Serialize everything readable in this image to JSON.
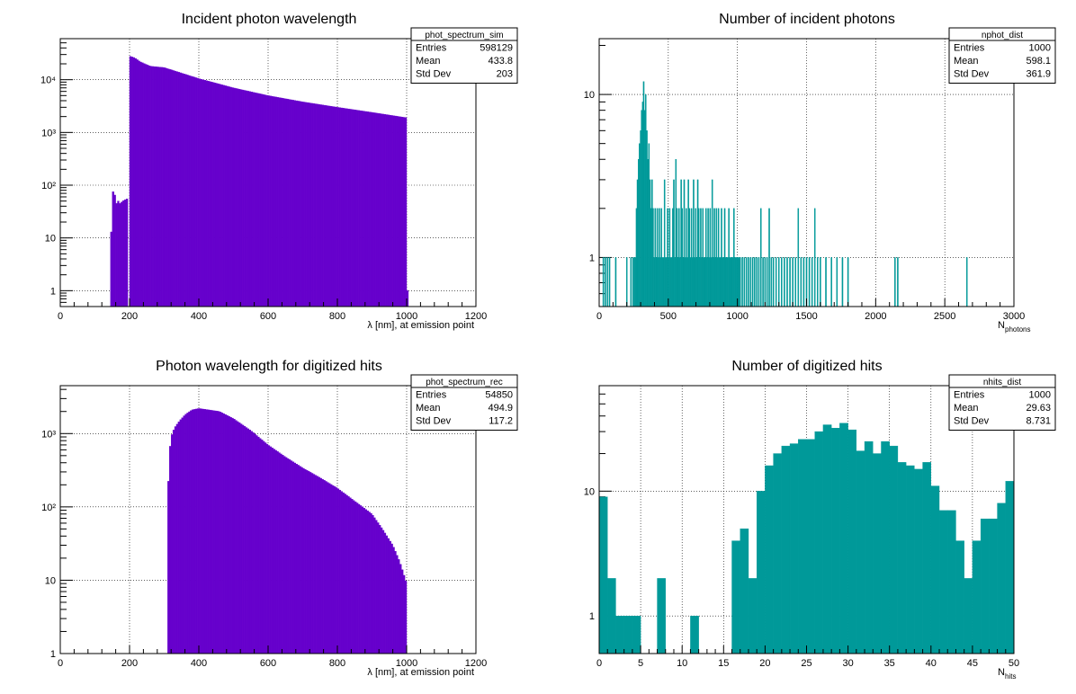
{
  "colors": {
    "purple_fill": "#6600CC",
    "teal_fill": "#009999",
    "frame": "#000000",
    "grid": "#000000",
    "background": "#ffffff"
  },
  "chart_data": [
    {
      "type": "bar",
      "title": "Incident photon wavelength",
      "xlabel": "λ [nm], at emission point",
      "ylabel": "",
      "xlim": [
        0,
        1200
      ],
      "ylim": [
        0.5,
        60000
      ],
      "yscale": "log",
      "grid": true,
      "x_ticks": [
        "0",
        "200",
        "400",
        "600",
        "800",
        "1000",
        "1200"
      ],
      "y_ticks": [
        "1",
        "10",
        "10²",
        "10³",
        "10⁴"
      ],
      "color": "#6600CC",
      "stats": {
        "name": "phot_spectrum_sim",
        "position": "top-right",
        "rows": [
          [
            "Entries",
            "598129"
          ],
          [
            "Mean",
            "433.8"
          ],
          [
            "Std Dev",
            "203"
          ]
        ]
      },
      "series": [
        {
          "bin_edges": [
            145,
            150,
            155,
            160,
            165,
            170,
            175,
            180,
            185,
            190,
            195
          ],
          "values": [
            13,
            75,
            65,
            45,
            50,
            45,
            48,
            51,
            53,
            55
          ]
        },
        {
          "bin_edges": [
            200,
            1000
          ],
          "nbins": 160,
          "profile": {
            "x": [
              200,
              215,
              230,
              260,
              300,
              400,
              500,
              600,
              700,
              800,
              900,
              1000
            ],
            "y": [
              28000,
              26000,
              22000,
              18000,
              17000,
              10500,
              7000,
              5000,
              3800,
              3000,
              2400,
              1900
            ]
          }
        },
        {
          "bin_edges": [
            1000,
            1005
          ],
          "values": [
            1
          ]
        }
      ]
    },
    {
      "type": "bar",
      "title": "Number of incident photons",
      "xlabel": "N",
      "xlabel_sub": "photons",
      "ylabel": "",
      "xlim": [
        0,
        3000
      ],
      "ylim": [
        0.5,
        22
      ],
      "yscale": "log",
      "grid": true,
      "x_ticks": [
        "0",
        "500",
        "1000",
        "1500",
        "2000",
        "2500",
        "3000"
      ],
      "y_ticks": [
        "1",
        "10"
      ],
      "color": "#009999",
      "stats": {
        "name": "nphot_dist",
        "position": "top-right",
        "rows": [
          [
            "Entries",
            "1000"
          ],
          [
            "Mean",
            "598.1"
          ],
          [
            "Std Dev",
            "361.9"
          ]
        ]
      },
      "bin_width": 7.5,
      "points": [
        [
          30,
          1
        ],
        [
          45,
          1
        ],
        [
          60,
          1
        ],
        [
          75,
          1
        ],
        [
          120,
          1
        ],
        [
          200,
          1
        ],
        [
          230,
          1
        ],
        [
          245,
          1
        ],
        [
          255,
          1
        ],
        [
          262,
          1
        ],
        [
          270,
          2
        ],
        [
          277,
          3
        ],
        [
          285,
          4
        ],
        [
          292,
          5
        ],
        [
          300,
          6
        ],
        [
          307,
          8
        ],
        [
          315,
          9
        ],
        [
          322,
          12
        ],
        [
          330,
          8
        ],
        [
          337,
          10
        ],
        [
          345,
          6
        ],
        [
          352,
          4
        ],
        [
          360,
          5
        ],
        [
          368,
          3
        ],
        [
          375,
          2
        ],
        [
          383,
          3
        ],
        [
          390,
          2
        ],
        [
          398,
          1
        ],
        [
          405,
          2
        ],
        [
          413,
          1
        ],
        [
          420,
          2
        ],
        [
          428,
          1
        ],
        [
          435,
          2
        ],
        [
          443,
          1
        ],
        [
          450,
          2
        ],
        [
          458,
          1
        ],
        [
          465,
          1
        ],
        [
          473,
          3
        ],
        [
          480,
          1
        ],
        [
          488,
          1
        ],
        [
          495,
          2
        ],
        [
          503,
          1
        ],
        [
          510,
          2
        ],
        [
          518,
          1
        ],
        [
          525,
          1
        ],
        [
          533,
          2
        ],
        [
          540,
          3
        ],
        [
          548,
          1
        ],
        [
          555,
          4
        ],
        [
          563,
          2
        ],
        [
          570,
          1
        ],
        [
          578,
          2
        ],
        [
          585,
          1
        ],
        [
          593,
          3
        ],
        [
          600,
          2
        ],
        [
          608,
          1
        ],
        [
          615,
          3
        ],
        [
          623,
          1
        ],
        [
          630,
          2
        ],
        [
          638,
          1
        ],
        [
          645,
          3
        ],
        [
          653,
          2
        ],
        [
          660,
          1
        ],
        [
          668,
          2
        ],
        [
          675,
          1
        ],
        [
          683,
          3
        ],
        [
          690,
          1
        ],
        [
          698,
          2
        ],
        [
          705,
          1
        ],
        [
          713,
          3
        ],
        [
          720,
          2
        ],
        [
          728,
          1
        ],
        [
          735,
          2
        ],
        [
          743,
          1
        ],
        [
          750,
          2
        ],
        [
          758,
          1
        ],
        [
          765,
          1
        ],
        [
          773,
          2
        ],
        [
          780,
          1
        ],
        [
          788,
          2
        ],
        [
          795,
          1
        ],
        [
          803,
          2
        ],
        [
          810,
          1
        ],
        [
          818,
          3
        ],
        [
          825,
          1
        ],
        [
          833,
          2
        ],
        [
          840,
          1
        ],
        [
          848,
          2
        ],
        [
          855,
          1
        ],
        [
          863,
          2
        ],
        [
          870,
          1
        ],
        [
          878,
          1
        ],
        [
          885,
          2
        ],
        [
          893,
          1
        ],
        [
          900,
          1
        ],
        [
          908,
          2
        ],
        [
          915,
          1
        ],
        [
          923,
          1
        ],
        [
          930,
          1
        ],
        [
          938,
          2
        ],
        [
          945,
          1
        ],
        [
          953,
          1
        ],
        [
          960,
          1
        ],
        [
          968,
          1
        ],
        [
          975,
          2
        ],
        [
          983,
          1
        ],
        [
          990,
          1
        ],
        [
          998,
          1
        ],
        [
          1005,
          1
        ],
        [
          1013,
          1
        ],
        [
          1020,
          1
        ],
        [
          1035,
          1
        ],
        [
          1050,
          1
        ],
        [
          1065,
          1
        ],
        [
          1080,
          1
        ],
        [
          1095,
          1
        ],
        [
          1110,
          1
        ],
        [
          1125,
          1
        ],
        [
          1140,
          1
        ],
        [
          1155,
          1
        ],
        [
          1170,
          2
        ],
        [
          1185,
          1
        ],
        [
          1200,
          1
        ],
        [
          1215,
          1
        ],
        [
          1230,
          2
        ],
        [
          1245,
          1
        ],
        [
          1260,
          1
        ],
        [
          1280,
          1
        ],
        [
          1300,
          1
        ],
        [
          1320,
          1
        ],
        [
          1340,
          1
        ],
        [
          1360,
          1
        ],
        [
          1380,
          1
        ],
        [
          1400,
          1
        ],
        [
          1420,
          1
        ],
        [
          1440,
          2
        ],
        [
          1460,
          1
        ],
        [
          1480,
          1
        ],
        [
          1500,
          1
        ],
        [
          1520,
          1
        ],
        [
          1540,
          1
        ],
        [
          1560,
          2
        ],
        [
          1580,
          1
        ],
        [
          1600,
          1
        ],
        [
          1640,
          1
        ],
        [
          1680,
          1
        ],
        [
          1720,
          1
        ],
        [
          1760,
          1
        ],
        [
          1800,
          1
        ],
        [
          2140,
          1
        ],
        [
          2160,
          1
        ],
        [
          2660,
          1
        ]
      ]
    },
    {
      "type": "bar",
      "title": "Photon wavelength for digitized hits",
      "xlabel": "λ [nm], at emission point",
      "ylabel": "",
      "xlim": [
        0,
        1200
      ],
      "ylim": [
        1,
        4500
      ],
      "yscale": "log",
      "grid": true,
      "x_ticks": [
        "0",
        "200",
        "400",
        "600",
        "800",
        "1000",
        "1200"
      ],
      "y_ticks": [
        "1",
        "10",
        "10²",
        "10³"
      ],
      "color": "#6600CC",
      "stats": {
        "name": "phot_spectrum_rec",
        "position": "top-right",
        "rows": [
          [
            "Entries",
            "54850"
          ],
          [
            "Mean",
            "494.9"
          ],
          [
            "Std Dev",
            "117.2"
          ]
        ]
      },
      "series": [
        {
          "bin_edges": [
            310,
            1000
          ],
          "nbins": 138,
          "profile": {
            "x": [
              310,
              315,
              320,
              330,
              345,
              360,
              380,
              400,
              430,
              460,
              500,
              550,
              600,
              650,
              700,
              750,
              800,
              850,
              900,
              930,
              960,
              980,
              1000
            ],
            "y": [
              100,
              500,
              900,
              1200,
              1500,
              1800,
              2100,
              2200,
              2100,
              2000,
              1600,
              1100,
              700,
              480,
              340,
              250,
              180,
              120,
              80,
              50,
              30,
              18,
              9
            ]
          }
        }
      ]
    },
    {
      "type": "bar",
      "title": "Number of digitized hits",
      "xlabel": "N",
      "xlabel_sub": "hits",
      "ylabel": "",
      "xlim": [
        0,
        50
      ],
      "ylim": [
        0.5,
        70
      ],
      "yscale": "log",
      "grid": true,
      "x_ticks": [
        "0",
        "5",
        "10",
        "15",
        "20",
        "25",
        "30",
        "35",
        "40",
        "45",
        "50"
      ],
      "y_ticks": [
        "1",
        "10"
      ],
      "color": "#009999",
      "stats": {
        "name": "nhits_dist",
        "position": "top-right",
        "rows": [
          [
            "Entries",
            "1000"
          ],
          [
            "Mean",
            "29.63"
          ],
          [
            "Std Dev",
            "8.731"
          ]
        ]
      },
      "bin_edges_start": 0,
      "bin_width": 1,
      "values": [
        9,
        2,
        1,
        1,
        1,
        0,
        0,
        2,
        0,
        0,
        0,
        1,
        0,
        0,
        0,
        0,
        4,
        5,
        2,
        10,
        16,
        20,
        23,
        24,
        26,
        26,
        30,
        34,
        32,
        35,
        31,
        21,
        25,
        20,
        25,
        23,
        17,
        16,
        15,
        17,
        11,
        7,
        7,
        4,
        2,
        4,
        6,
        6,
        8,
        12
      ]
    }
  ]
}
